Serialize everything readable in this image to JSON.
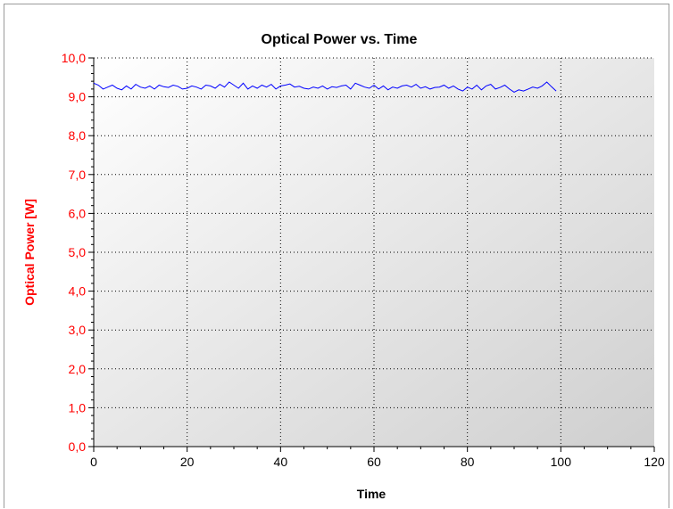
{
  "chart_data": {
    "type": "line",
    "title": "Optical Power vs. Time",
    "xlabel": "Time",
    "ylabel": "Optical Power [W]",
    "xlim": [
      0,
      120
    ],
    "ylim": [
      0,
      10
    ],
    "x_ticks": [
      "0",
      "20",
      "40",
      "60",
      "80",
      "100",
      "120"
    ],
    "y_ticks": [
      "0,0",
      "1,0",
      "2,0",
      "3,0",
      "4,0",
      "5,0",
      "6,0",
      "7,0",
      "8,0",
      "9,0",
      "10,0"
    ],
    "grid": true,
    "colors": {
      "series": "#0000ff",
      "y_axis": "#ff0000",
      "x_axis": "#000000"
    },
    "series": [
      {
        "x": [
          0,
          1,
          2,
          3,
          4,
          5,
          6,
          7,
          8,
          9,
          10,
          11,
          12,
          13,
          14,
          15,
          16,
          17,
          18,
          19,
          20,
          21,
          22,
          23,
          24,
          25,
          26,
          27,
          28,
          29,
          30,
          31,
          32,
          33,
          34,
          35,
          36,
          37,
          38,
          39,
          40,
          41,
          42,
          43,
          44,
          45,
          46,
          47,
          48,
          49,
          50,
          51,
          52,
          53,
          54,
          55,
          56,
          57,
          58,
          59,
          60,
          61,
          62,
          63,
          64,
          65,
          66,
          67,
          68,
          69,
          70,
          71,
          72,
          73,
          74,
          75,
          76,
          77,
          78,
          79,
          80,
          81,
          82,
          83,
          84,
          85,
          86,
          87,
          88,
          89,
          90,
          91,
          92,
          93,
          94,
          95,
          96,
          97,
          98,
          99
        ],
        "values": [
          9.35,
          9.3,
          9.2,
          9.25,
          9.3,
          9.22,
          9.18,
          9.28,
          9.2,
          9.32,
          9.25,
          9.22,
          9.28,
          9.2,
          9.3,
          9.26,
          9.24,
          9.3,
          9.27,
          9.2,
          9.22,
          9.28,
          9.25,
          9.2,
          9.3,
          9.28,
          9.22,
          9.32,
          9.25,
          9.38,
          9.3,
          9.22,
          9.35,
          9.2,
          9.28,
          9.22,
          9.3,
          9.25,
          9.32,
          9.2,
          9.28,
          9.3,
          9.33,
          9.25,
          9.27,
          9.22,
          9.2,
          9.25,
          9.22,
          9.28,
          9.2,
          9.26,
          9.24,
          9.28,
          9.3,
          9.2,
          9.35,
          9.3,
          9.25,
          9.22,
          9.3,
          9.2,
          9.28,
          9.18,
          9.25,
          9.22,
          9.28,
          9.3,
          9.25,
          9.32,
          9.22,
          9.26,
          9.2,
          9.24,
          9.25,
          9.3,
          9.22,
          9.28,
          9.2,
          9.15,
          9.25,
          9.2,
          9.3,
          9.18,
          9.28,
          9.32,
          9.2,
          9.24,
          9.3,
          9.2,
          9.12,
          9.18,
          9.15,
          9.2,
          9.25,
          9.22,
          9.28,
          9.38,
          9.26,
          9.15
        ]
      }
    ]
  }
}
